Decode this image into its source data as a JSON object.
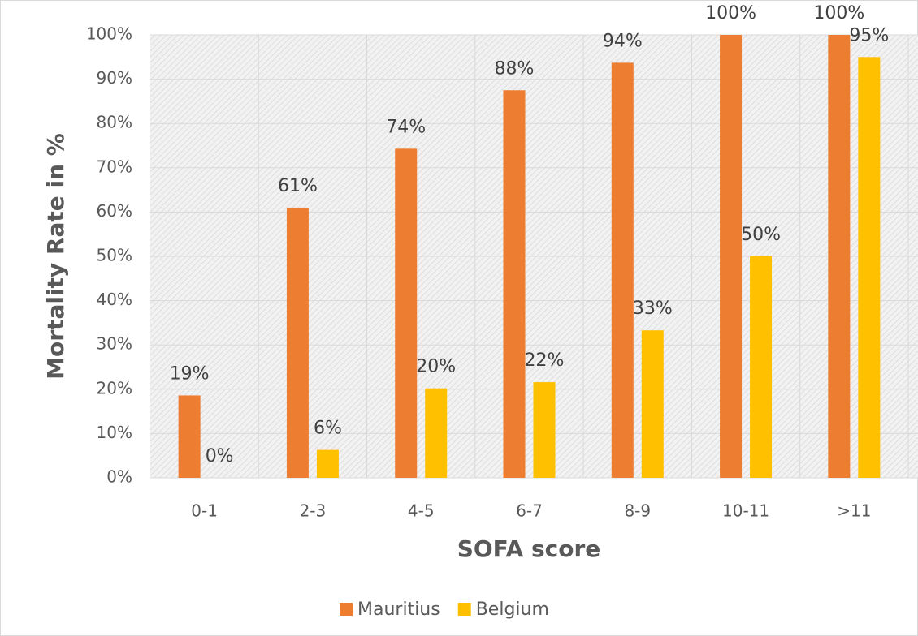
{
  "chart_data": {
    "type": "bar",
    "x_label": "SOFA score",
    "y_label": "Mortality Rate in %",
    "categories": [
      "0-1",
      "2-3",
      "4-5",
      "6-7",
      "8-9",
      "10-11",
      ">11"
    ],
    "series": [
      {
        "name": "Mauritius",
        "color": "#ed7d31",
        "values": [
          18.6,
          61,
          74.3,
          87.5,
          93.7,
          100,
          100
        ],
        "value_labels": [
          "19%",
          "61%",
          "74%",
          "88%",
          "94%",
          "100%",
          "100%"
        ]
      },
      {
        "name": "Belgium",
        "color": "#ffc000",
        "values": [
          0,
          6.3,
          20.2,
          21.6,
          33.3,
          50,
          95
        ],
        "value_labels": [
          "0%",
          "6%",
          "20%",
          "22%",
          "33%",
          "50%",
          "95%"
        ]
      }
    ],
    "ylim": [
      0,
      100
    ],
    "yticks": [
      {
        "value": 0,
        "label": "0%"
      },
      {
        "value": 10,
        "label": "10%"
      },
      {
        "value": 20,
        "label": "20%"
      },
      {
        "value": 30,
        "label": "30%"
      },
      {
        "value": 40,
        "label": "40%"
      },
      {
        "value": 50,
        "label": "50%"
      },
      {
        "value": 60,
        "label": "60%"
      },
      {
        "value": 70,
        "label": "70%"
      },
      {
        "value": 80,
        "label": "80%"
      },
      {
        "value": 90,
        "label": "90%"
      },
      {
        "value": 100,
        "label": "100%"
      }
    ],
    "grid": true,
    "legend": "bottom"
  }
}
